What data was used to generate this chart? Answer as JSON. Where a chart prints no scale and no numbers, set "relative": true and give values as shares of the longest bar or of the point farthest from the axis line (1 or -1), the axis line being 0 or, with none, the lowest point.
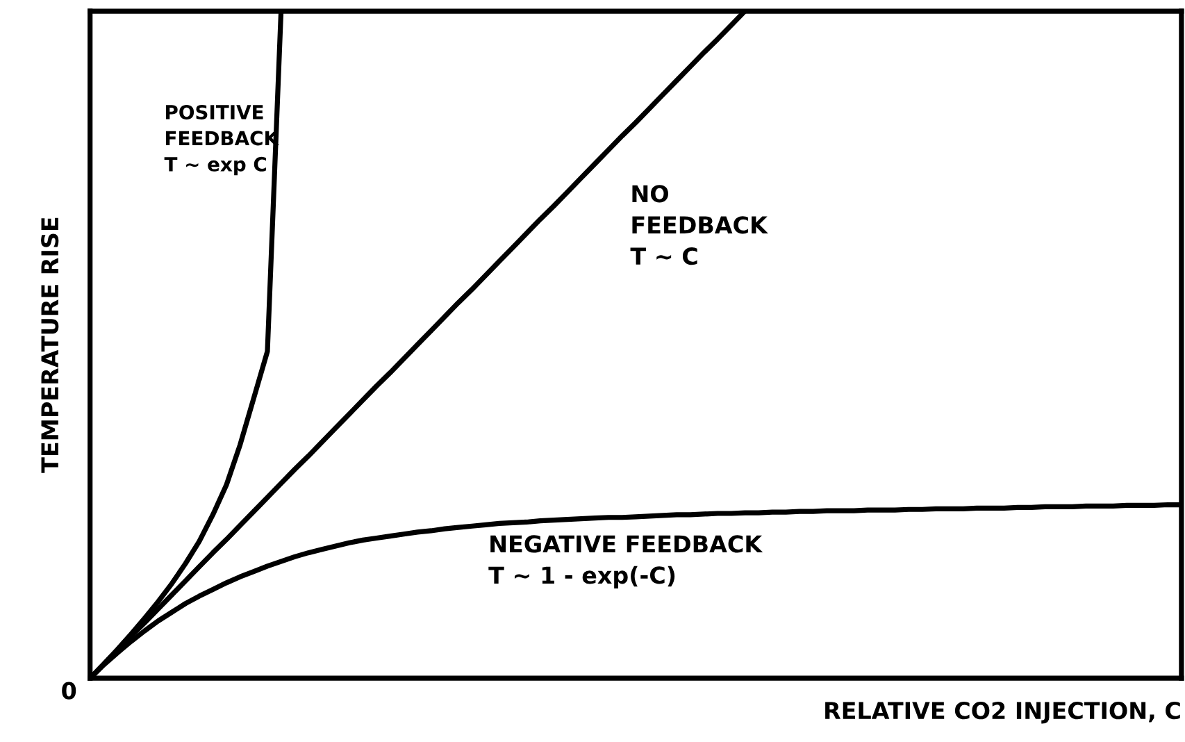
{
  "chart_data": {
    "type": "line",
    "relative": true,
    "xlabel": "RELATIVE CO2 INJECTION, C",
    "ylabel": "TEMPERATURE RISE",
    "annotations": [
      "0"
    ],
    "legend": false,
    "marker": "none",
    "line_style": "solid",
    "tick_labels": false,
    "categories": [
      null,
      null,
      null,
      null,
      null,
      null,
      null,
      null,
      null,
      null,
      null,
      null,
      null,
      null,
      null,
      null,
      null,
      null,
      null,
      null,
      null,
      null,
      null,
      null,
      null,
      null,
      null,
      null,
      null,
      null,
      null,
      null,
      null,
      null,
      null,
      null,
      null,
      null,
      null,
      null,
      null,
      null,
      null,
      null,
      null,
      null,
      null,
      null,
      null,
      null,
      null,
      null,
      null,
      null,
      null,
      null,
      null,
      null,
      null,
      null,
      null,
      null,
      null,
      null,
      null,
      null,
      null,
      null,
      null,
      null,
      null,
      null,
      null,
      null,
      null,
      null,
      null,
      null,
      null,
      null,
      null
    ],
    "series": [
      {
        "name": "POSITIVE\nFEEDBACK\nT ~ exp C",
        "color": "#000000",
        "values": [
          0,
          0.021,
          0.043,
          0.066,
          0.09,
          0.115,
          0.142,
          0.172,
          0.205,
          0.245,
          0.29,
          0.35,
          0.42,
          0.49,
          1,
          null,
          null,
          null,
          null,
          null,
          null,
          null,
          null,
          null,
          null,
          null,
          null,
          null,
          null,
          null,
          null,
          null,
          null,
          null,
          null,
          null,
          null,
          null,
          null,
          null,
          null,
          null,
          null,
          null,
          null,
          null,
          null,
          null,
          null,
          null,
          null,
          null,
          null,
          null,
          null,
          null,
          null,
          null,
          null,
          null,
          null,
          null,
          null,
          null,
          null,
          null,
          null,
          null,
          null,
          null,
          null,
          null,
          null,
          null,
          null,
          null,
          null,
          null,
          null,
          null,
          null
        ]
      },
      {
        "name": "NO\nFEEDBACK\nT ~ C",
        "color": "#000000",
        "values": [
          0,
          0.021,
          0.042,
          0.063,
          0.083,
          0.104,
          0.125,
          0.146,
          0.167,
          0.188,
          0.208,
          0.229,
          0.25,
          0.271,
          0.292,
          0.313,
          0.333,
          0.354,
          0.375,
          0.396,
          0.417,
          0.438,
          0.458,
          0.479,
          0.5,
          0.521,
          0.542,
          0.563,
          0.583,
          0.604,
          0.625,
          0.646,
          0.667,
          0.688,
          0.708,
          0.729,
          0.75,
          0.771,
          0.792,
          0.813,
          0.833,
          0.854,
          0.875,
          0.896,
          0.917,
          0.938,
          0.958,
          0.979,
          1,
          null,
          null,
          null,
          null,
          null,
          null,
          null,
          null,
          null,
          null,
          null,
          null,
          null,
          null,
          null,
          null,
          null,
          null,
          null,
          null,
          null,
          null,
          null,
          null,
          null,
          null,
          null,
          null,
          null,
          null,
          null,
          null
        ]
      },
      {
        "name": "NEGATIVE FEEDBACK\nT ~ 1 - exp(-C)",
        "color": "#000000",
        "values": [
          0,
          0.02,
          0.038,
          0.055,
          0.071,
          0.086,
          0.099,
          0.112,
          0.123,
          0.133,
          0.143,
          0.152,
          0.16,
          0.168,
          0.175,
          0.182,
          0.188,
          0.193,
          0.198,
          0.203,
          0.207,
          0.21,
          0.213,
          0.216,
          0.219,
          0.221,
          0.224,
          0.226,
          0.228,
          0.23,
          0.232,
          0.233,
          0.234,
          0.236,
          0.237,
          0.238,
          0.239,
          0.24,
          0.241,
          0.241,
          0.242,
          0.243,
          0.244,
          0.245,
          0.245,
          0.246,
          0.247,
          0.247,
          0.248,
          0.248,
          0.249,
          0.249,
          0.25,
          0.25,
          0.251,
          0.251,
          0.251,
          0.252,
          0.252,
          0.252,
          0.253,
          0.253,
          0.254,
          0.254,
          0.254,
          0.255,
          0.255,
          0.255,
          0.256,
          0.256,
          0.257,
          0.257,
          0.257,
          0.258,
          0.258,
          0.258,
          0.259,
          0.259,
          0.259,
          0.26,
          0.26
        ]
      }
    ]
  }
}
